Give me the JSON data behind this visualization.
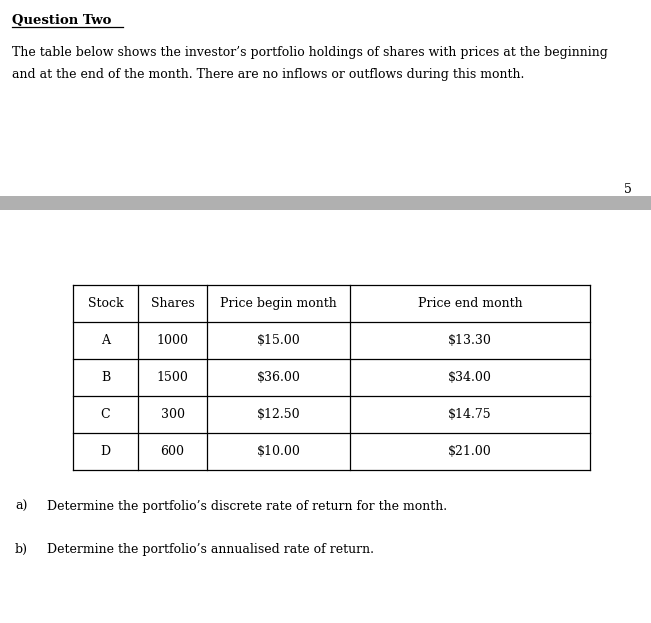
{
  "title": "Question Two",
  "intro_line1": "The table below shows the investor’s portfolio holdings of shares with prices at the beginning",
  "intro_line2": "and at the end of the month. There are no inflows or outflows during this month.",
  "page_number": "5",
  "table_headers": [
    "Stock",
    "Shares",
    "Price begin month",
    "Price end month"
  ],
  "table_rows": [
    [
      "A",
      "1000",
      "$15.00",
      "$13.30"
    ],
    [
      "B",
      "1500",
      "$36.00",
      "$34.00"
    ],
    [
      "C",
      "300",
      "$12.50",
      "$14.75"
    ],
    [
      "D",
      "600",
      "$10.00",
      "$21.00"
    ]
  ],
  "question_a_label": "a)",
  "question_a_text": "Determine the portfolio’s discrete rate of return for the month.",
  "question_b_label": "b)",
  "question_b_text": "Determine the portfolio’s annualised rate of return.",
  "separator_color": "#b0b0b0",
  "background_color": "#ffffff",
  "text_color": "#000000",
  "font_size_title": 9.5,
  "font_size_body": 9.0,
  "font_size_table": 9.0,
  "font_size_page": 9.0
}
